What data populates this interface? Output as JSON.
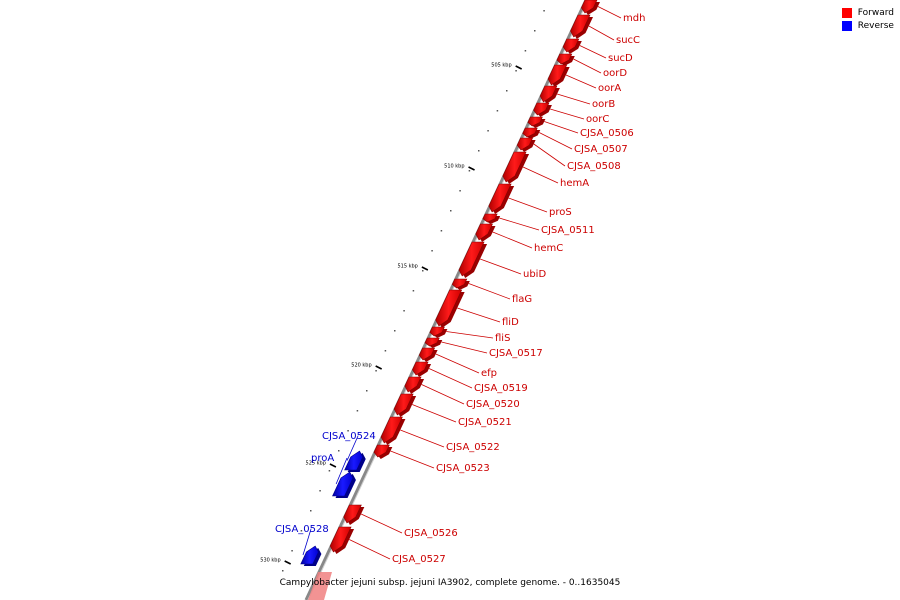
{
  "caption": "Campylobacter jejuni subsp. jejuni IA3902, complete genome. - 0..1635045",
  "legend": [
    {
      "label": "Forward",
      "color": "#ff0000"
    },
    {
      "label": "Reverse",
      "color": "#0000ff"
    }
  ],
  "ticks": [
    "505 kbp",
    "510 kbp",
    "515 kbp",
    "520 kbp",
    "525 kbp",
    "530 kbp"
  ],
  "genes": [
    {
      "name": "mdh",
      "strand": "forward"
    },
    {
      "name": "sucC",
      "strand": "forward"
    },
    {
      "name": "sucD",
      "strand": "forward"
    },
    {
      "name": "oorD",
      "strand": "forward"
    },
    {
      "name": "oorA",
      "strand": "forward"
    },
    {
      "name": "oorB",
      "strand": "forward"
    },
    {
      "name": "oorC",
      "strand": "forward"
    },
    {
      "name": "CJSA_0506",
      "strand": "forward"
    },
    {
      "name": "CJSA_0507",
      "strand": "forward"
    },
    {
      "name": "CJSA_0508",
      "strand": "forward"
    },
    {
      "name": "hemA",
      "strand": "forward"
    },
    {
      "name": "proS",
      "strand": "forward"
    },
    {
      "name": "CJSA_0511",
      "strand": "forward"
    },
    {
      "name": "hemC",
      "strand": "forward"
    },
    {
      "name": "ubiD",
      "strand": "forward"
    },
    {
      "name": "flaG",
      "strand": "forward"
    },
    {
      "name": "fliD",
      "strand": "forward"
    },
    {
      "name": "fliS",
      "strand": "forward"
    },
    {
      "name": "CJSA_0517",
      "strand": "forward"
    },
    {
      "name": "efp",
      "strand": "forward"
    },
    {
      "name": "CJSA_0519",
      "strand": "forward"
    },
    {
      "name": "CJSA_0520",
      "strand": "forward"
    },
    {
      "name": "CJSA_0521",
      "strand": "forward"
    },
    {
      "name": "CJSA_0522",
      "strand": "forward"
    },
    {
      "name": "CJSA_0523",
      "strand": "forward"
    },
    {
      "name": "CJSA_0524",
      "strand": "reverse"
    },
    {
      "name": "proA",
      "strand": "reverse"
    },
    {
      "name": "CJSA_0526",
      "strand": "forward"
    },
    {
      "name": "CJSA_0527",
      "strand": "forward"
    },
    {
      "name": "CJSA_0528",
      "strand": "reverse"
    }
  ]
}
